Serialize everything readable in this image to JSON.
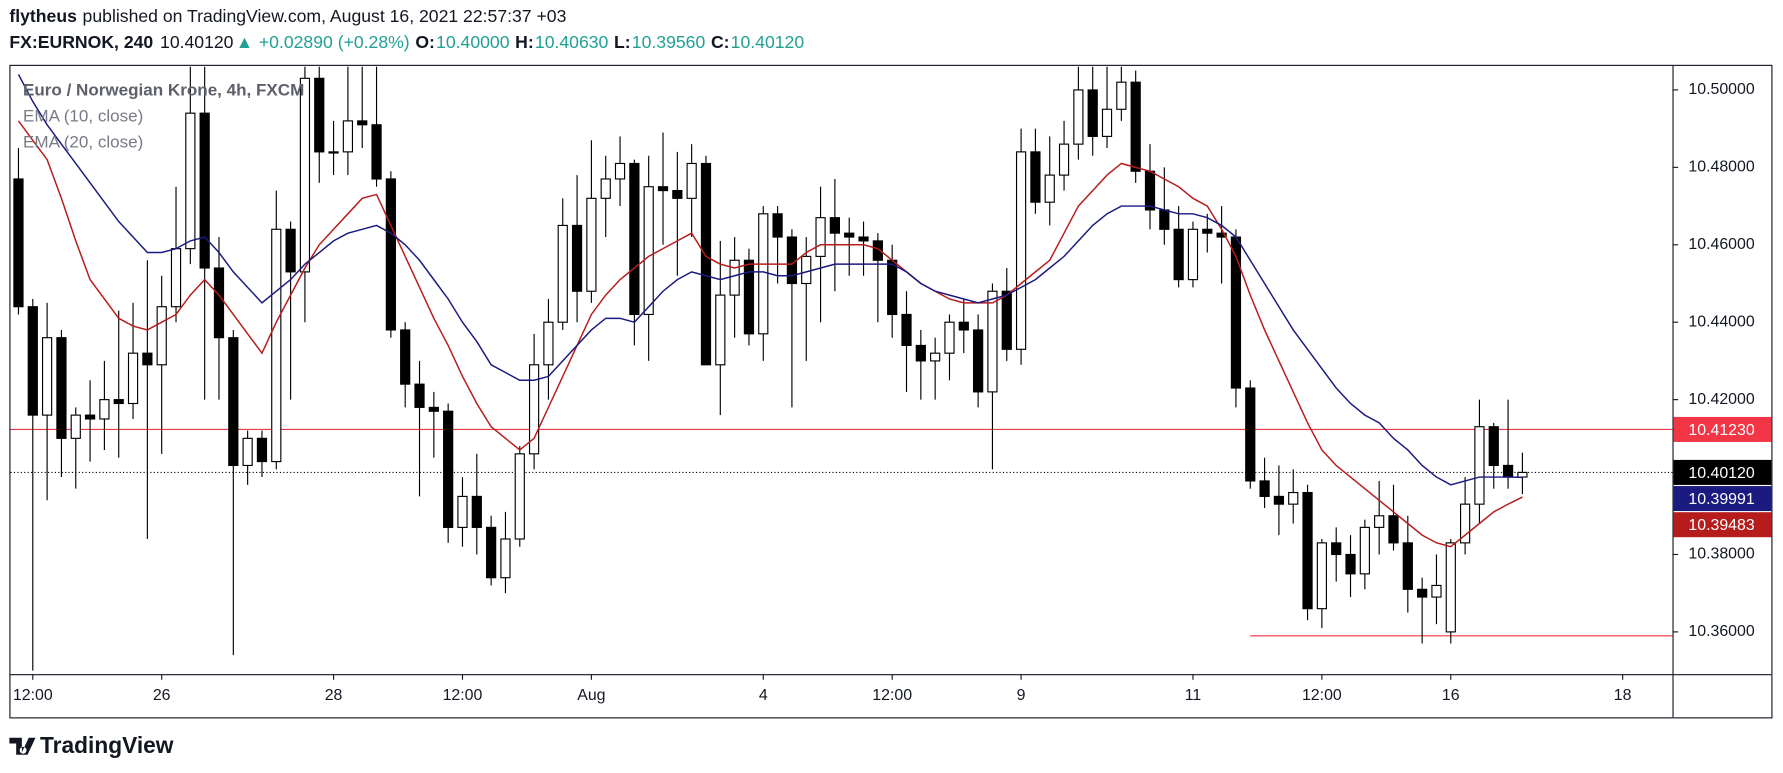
{
  "header": {
    "author": "flytheus",
    "published": "published on TradingView.com, August 16, 2021 22:57:37 +03",
    "symbol": "FX:EURNOK, 240",
    "last": "10.40120",
    "arrow": "▲",
    "change": "+0.02890 (+0.28%)",
    "open_label": "O:",
    "open": "10.40000",
    "high_label": "H:",
    "high": "10.40630",
    "low_label": "L:",
    "low": "10.39560",
    "close_label": "C:",
    "close": "10.40120"
  },
  "footer": {
    "brand": "TradingView"
  },
  "chart_data": {
    "type": "candlestick",
    "title": "Euro / Norwegian Krone, 4h, FXCM",
    "categories": [
      null,
      "12:00",
      null,
      null,
      null,
      null,
      null,
      null,
      null,
      null,
      "26",
      null,
      null,
      null,
      null,
      null,
      null,
      null,
      null,
      null,
      null,
      null,
      "28",
      null,
      null,
      null,
      null,
      null,
      null,
      null,
      null,
      "12:00",
      null,
      null,
      null,
      null,
      null,
      null,
      null,
      null,
      "Aug",
      null,
      null,
      null,
      null,
      null,
      null,
      null,
      null,
      null,
      null,
      null,
      "4",
      null,
      null,
      null,
      null,
      null,
      null,
      null,
      null,
      "12:00",
      null,
      null,
      null,
      null,
      null,
      null,
      null,
      null,
      "9",
      null,
      null,
      null,
      null,
      null,
      null,
      null,
      null,
      null,
      null,
      null,
      "11",
      null,
      null,
      null,
      null,
      null,
      null,
      null,
      null,
      "12:00",
      null,
      null,
      null,
      null,
      null,
      null,
      null,
      null,
      "16",
      null,
      null,
      null,
      null,
      null,
      null,
      null,
      null,
      null,
      null,
      null,
      "18"
    ],
    "open": [
      10.477,
      10.444,
      10.416,
      10.436,
      10.41,
      10.416,
      10.415,
      10.42,
      10.419,
      10.432,
      10.429,
      10.444,
      10.459,
      10.494,
      10.454,
      10.436,
      10.403,
      10.41,
      10.404,
      10.464,
      10.453,
      10.503,
      10.484,
      10.484,
      10.492,
      10.491,
      10.477,
      10.438,
      10.424,
      10.418,
      10.417,
      10.387,
      10.395,
      10.387,
      10.374,
      10.384,
      10.406,
      10.429,
      10.44,
      10.465,
      10.448,
      10.472,
      10.477,
      10.481,
      10.442,
      10.475,
      10.474,
      10.472,
      10.481,
      10.429,
      10.447,
      10.456,
      10.437,
      10.468,
      10.462,
      10.45,
      10.457,
      10.467,
      10.463,
      10.462,
      10.461,
      10.456,
      10.442,
      10.434,
      10.43,
      10.432,
      10.44,
      10.438,
      10.422,
      10.448,
      10.433,
      10.484,
      10.471,
      10.478,
      10.486,
      10.5,
      10.488,
      10.495,
      10.502,
      10.479,
      10.469,
      10.464,
      10.451,
      10.464,
      10.463,
      10.462,
      10.423,
      10.399,
      10.395,
      10.393,
      10.396,
      10.366,
      10.383,
      10.38,
      10.375,
      10.387,
      10.39,
      10.383,
      10.371,
      10.369,
      10.36,
      10.383,
      10.393,
      10.413,
      10.403,
      10.4,
      null,
      null,
      null,
      null,
      null,
      null,
      null
    ],
    "high": [
      10.485,
      10.446,
      10.445,
      10.438,
      10.418,
      10.425,
      10.43,
      10.443,
      10.445,
      10.456,
      10.452,
      10.475,
      10.506,
      10.506,
      10.462,
      10.438,
      10.412,
      10.412,
      10.474,
      10.466,
      10.506,
      10.506,
      10.492,
      10.506,
      10.506,
      10.506,
      10.479,
      10.44,
      10.43,
      10.422,
      10.419,
      10.4,
      10.406,
      10.39,
      10.391,
      10.408,
      10.437,
      10.446,
      10.472,
      10.478,
      10.487,
      10.483,
      10.488,
      10.482,
      10.483,
      10.489,
      10.484,
      10.486,
      10.483,
      10.461,
      10.462,
      10.459,
      10.47,
      10.47,
      10.464,
      10.462,
      10.475,
      10.477,
      10.467,
      10.466,
      10.463,
      10.46,
      10.448,
      10.438,
      10.436,
      10.442,
      10.446,
      10.442,
      10.45,
      10.454,
      10.49,
      10.49,
      10.488,
      10.492,
      10.506,
      10.506,
      10.506,
      10.506,
      10.505,
      10.486,
      10.48,
      10.47,
      10.466,
      10.468,
      10.47,
      10.464,
      10.425,
      10.405,
      10.403,
      10.402,
      10.398,
      10.384,
      10.387,
      10.385,
      10.389,
      10.399,
      10.398,
      10.39,
      10.374,
      10.38,
      10.384,
      10.4,
      10.42,
      10.414,
      10.42,
      10.4063,
      null,
      null,
      null,
      null,
      null,
      null,
      null
    ],
    "low": [
      10.442,
      10.35,
      10.394,
      10.4,
      10.397,
      10.404,
      10.407,
      10.405,
      10.415,
      10.384,
      10.406,
      10.44,
      10.455,
      10.42,
      10.42,
      10.354,
      10.398,
      10.4,
      10.402,
      10.42,
      10.44,
      10.476,
      10.478,
      10.478,
      10.485,
      10.475,
      10.436,
      10.418,
      10.395,
      10.405,
      10.383,
      10.382,
      10.38,
      10.372,
      10.37,
      10.382,
      10.402,
      10.42,
      10.438,
      10.44,
      10.445,
      10.462,
      10.47,
      10.434,
      10.43,
      10.46,
      10.452,
      10.462,
      10.429,
      10.416,
      10.436,
      10.434,
      10.43,
      10.45,
      10.418,
      10.43,
      10.44,
      10.448,
      10.452,
      10.452,
      10.44,
      10.436,
      10.422,
      10.42,
      10.42,
      10.425,
      10.432,
      10.418,
      10.402,
      10.43,
      10.429,
      10.468,
      10.465,
      10.474,
      10.482,
      10.483,
      10.485,
      10.492,
      10.476,
      10.464,
      10.46,
      10.449,
      10.449,
      10.458,
      10.45,
      10.418,
      10.397,
      10.392,
      10.385,
      10.388,
      10.363,
      10.361,
      10.373,
      10.369,
      10.371,
      10.38,
      10.381,
      10.365,
      10.357,
      10.362,
      10.357,
      10.38,
      10.388,
      10.397,
      10.397,
      10.3956,
      null,
      null,
      null,
      null,
      null,
      null,
      null
    ],
    "close": [
      10.444,
      10.416,
      10.436,
      10.41,
      10.416,
      10.415,
      10.42,
      10.419,
      10.432,
      10.429,
      10.444,
      10.459,
      10.494,
      10.454,
      10.436,
      10.403,
      10.41,
      10.404,
      10.464,
      10.453,
      10.503,
      10.484,
      10.484,
      10.492,
      10.491,
      10.477,
      10.438,
      10.424,
      10.418,
      10.417,
      10.387,
      10.395,
      10.387,
      10.374,
      10.384,
      10.406,
      10.429,
      10.44,
      10.465,
      10.448,
      10.472,
      10.477,
      10.481,
      10.442,
      10.475,
      10.474,
      10.472,
      10.481,
      10.429,
      10.447,
      10.456,
      10.437,
      10.468,
      10.462,
      10.45,
      10.457,
      10.467,
      10.463,
      10.462,
      10.461,
      10.456,
      10.442,
      10.434,
      10.43,
      10.432,
      10.44,
      10.438,
      10.422,
      10.448,
      10.433,
      10.484,
      10.471,
      10.478,
      10.486,
      10.5,
      10.488,
      10.495,
      10.502,
      10.479,
      10.469,
      10.464,
      10.451,
      10.464,
      10.463,
      10.462,
      10.423,
      10.399,
      10.395,
      10.393,
      10.396,
      10.366,
      10.383,
      10.38,
      10.375,
      10.387,
      10.39,
      10.383,
      10.371,
      10.369,
      10.372,
      10.383,
      10.393,
      10.413,
      10.403,
      10.4,
      10.4012,
      null,
      null,
      null,
      null,
      null,
      null,
      null
    ],
    "up_color": "#ffffff",
    "down_color": "#000000",
    "series": [
      {
        "name": "EMA (10, close)",
        "color": "#b71c1c",
        "values": [
          10.492,
          10.487,
          10.482,
          10.472,
          10.461,
          10.451,
          10.446,
          10.441,
          10.439,
          10.438,
          10.44,
          10.442,
          10.447,
          10.451,
          10.447,
          10.442,
          10.437,
          10.432,
          10.44,
          10.447,
          10.454,
          10.46,
          10.464,
          10.468,
          10.472,
          10.473,
          10.465,
          10.457,
          10.449,
          10.441,
          10.434,
          10.426,
          10.419,
          10.413,
          10.41,
          10.407,
          10.41,
          10.418,
          10.426,
          10.434,
          10.442,
          10.447,
          10.451,
          10.454,
          10.457,
          10.459,
          10.461,
          10.463,
          10.457,
          10.455,
          10.454,
          10.455,
          10.455,
          10.455,
          10.455,
          10.458,
          10.46,
          10.46,
          10.46,
          10.46,
          10.459,
          10.456,
          10.453,
          10.45,
          10.448,
          10.446,
          10.445,
          10.445,
          10.445,
          10.447,
          10.45,
          10.453,
          10.456,
          10.463,
          10.47,
          10.474,
          10.478,
          10.481,
          10.48,
          10.479,
          10.477,
          10.475,
          10.472,
          10.47,
          10.464,
          10.457,
          10.447,
          10.438,
          10.43,
          10.422,
          10.414,
          10.407,
          10.403,
          10.4,
          10.397,
          10.394,
          10.391,
          10.388,
          10.385,
          10.383,
          10.382,
          10.385,
          10.388,
          10.391,
          10.393,
          10.39483,
          null,
          null,
          null,
          null,
          null,
          null,
          null
        ]
      },
      {
        "name": "EMA (20, close)",
        "color": "#1a1a80",
        "values": [
          10.504,
          10.497,
          10.491,
          10.486,
          10.481,
          10.476,
          10.471,
          10.466,
          10.462,
          10.458,
          10.458,
          10.459,
          10.461,
          10.462,
          10.458,
          10.453,
          10.449,
          10.445,
          10.448,
          10.451,
          10.455,
          10.458,
          10.461,
          10.463,
          10.464,
          10.465,
          10.463,
          10.46,
          10.456,
          10.451,
          10.446,
          10.44,
          10.435,
          10.429,
          10.427,
          10.425,
          10.425,
          10.426,
          10.43,
          10.434,
          10.438,
          10.441,
          10.441,
          10.44,
          10.444,
          10.448,
          10.451,
          10.453,
          10.452,
          10.451,
          10.452,
          10.453,
          10.453,
          10.452,
          10.452,
          10.453,
          10.454,
          10.455,
          10.455,
          10.455,
          10.455,
          10.455,
          10.453,
          10.45,
          10.448,
          10.447,
          10.446,
          10.445,
          10.446,
          10.447,
          10.449,
          10.451,
          10.454,
          10.457,
          10.461,
          10.465,
          10.468,
          10.47,
          10.47,
          10.47,
          10.469,
          10.468,
          10.468,
          10.467,
          10.465,
          10.462,
          10.456,
          10.45,
          10.444,
          10.438,
          10.433,
          10.428,
          10.423,
          10.419,
          10.416,
          10.414,
          10.41,
          10.407,
          10.403,
          10.4,
          10.398,
          10.399,
          10.4,
          10.4,
          10.4,
          10.39991,
          null,
          null,
          null,
          null,
          null,
          null,
          null
        ]
      }
    ],
    "price_lines": [
      {
        "value": 10.4123,
        "label": "10.41230",
        "color": "#f23645",
        "style": "solid"
      },
      {
        "value": 10.4012,
        "label": "10.40120",
        "color": "#000000",
        "style": "dotted"
      }
    ],
    "support_line": {
      "value": 10.359,
      "from_index": 86,
      "color": "#f23645"
    },
    "ylim": [
      10.3491,
      10.5062
    ],
    "yticks": [
      {
        "value": 10.36,
        "label": "10.36000"
      },
      {
        "value": 10.38,
        "label": "10.38000"
      },
      {
        "value": 10.4,
        "label": "10.40000"
      },
      {
        "value": 10.42,
        "label": "10.42000"
      },
      {
        "value": 10.44,
        "label": "10.44000"
      },
      {
        "value": 10.46,
        "label": "10.46000"
      },
      {
        "value": 10.48,
        "label": "10.48000"
      },
      {
        "value": 10.5,
        "label": "10.50000"
      }
    ],
    "grid": false
  }
}
